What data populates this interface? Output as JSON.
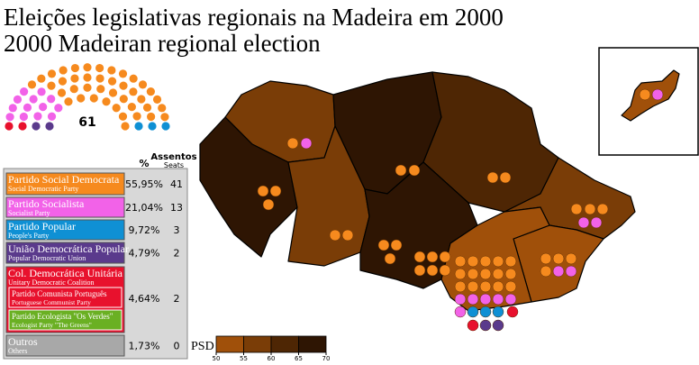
{
  "title": "Eleições legislativas regionais na Madeira em 2000",
  "subtitle": "2000 Madeiran regional election",
  "hemicycle": {
    "total": 61
  },
  "table": {
    "headers": {
      "percent": "%",
      "seats": "Assentos",
      "seats_en": "Seats"
    },
    "parties": [
      {
        "name": "Partido Social Democrata",
        "name_en": "Social Democratic Party",
        "percent": "55,95%",
        "seats": 41,
        "color": "#f68a1e"
      },
      {
        "name": "Partido Socialista",
        "name_en": "Socialist Party",
        "percent": "21,04%",
        "seats": 13,
        "color": "#f262e8"
      },
      {
        "name": "Partido Popular",
        "name_en": "People's Party",
        "percent": "9,72%",
        "seats": 3,
        "color": "#0f90d4"
      },
      {
        "name": "União Democrática Popular",
        "name_en": "Popular Democratic Union",
        "percent": "4,79%",
        "seats": 2,
        "color": "#5a3a8c"
      },
      {
        "name": "Col. Democrática Unitária",
        "name_en": "Unitary Democratic Coalition",
        "percent": "4,64%",
        "seats": 2,
        "color": "#e8112d",
        "members": [
          {
            "name": "Partido Comunista Português",
            "name_en": "Portuguese Communist Party",
            "color": "#e8112d"
          },
          {
            "name": "Partido Ecologista \"Os Verdes\"",
            "name_en": "Ecologist Party \"The Greens\"",
            "color": "#6ab023"
          }
        ]
      },
      {
        "name": "Outros",
        "name_en": "Others",
        "percent": "1,73%",
        "seats": 0,
        "color": "#a8a8a8"
      }
    ]
  },
  "legend": {
    "label": "PSD",
    "ticks": [
      50,
      55,
      60,
      65,
      70
    ],
    "colors": [
      "#a0500a",
      "#7a3d07",
      "#4e2604",
      "#2e1503"
    ]
  }
}
